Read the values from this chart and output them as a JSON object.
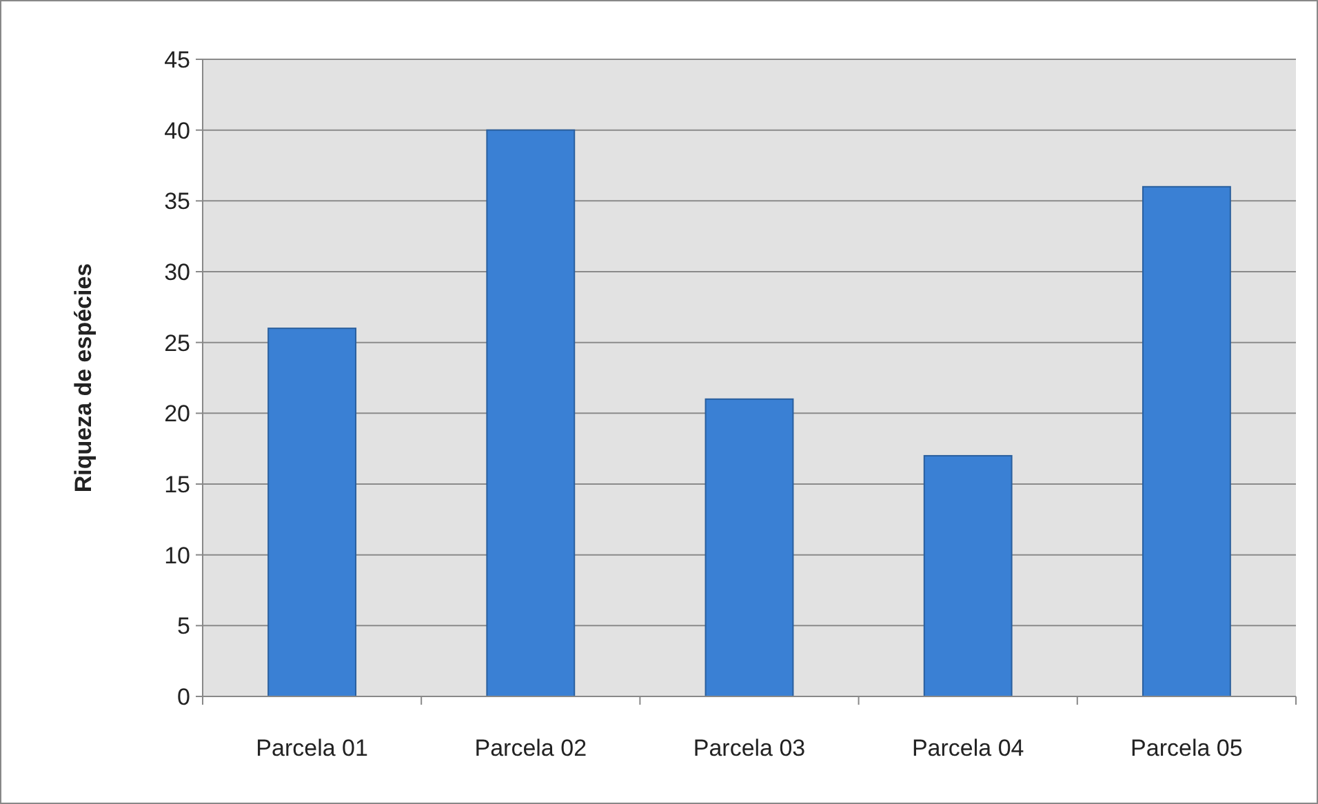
{
  "chart_data": {
    "type": "bar",
    "ylabel": "Riqueza de espécies",
    "categories": [
      "Parcela 01",
      "Parcela 02",
      "Parcela 03",
      "Parcela 04",
      "Parcela 05"
    ],
    "values": [
      26,
      40,
      21,
      17,
      36
    ],
    "color": "#3a80d4",
    "ylim": [
      0,
      45
    ],
    "yticks": [
      0,
      5,
      10,
      15,
      20,
      25,
      30,
      35,
      40,
      45
    ],
    "grid": "y"
  }
}
